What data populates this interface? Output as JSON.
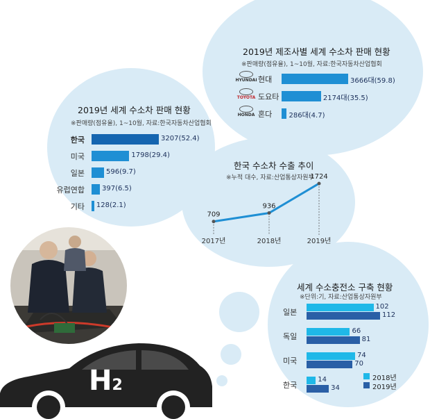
{
  "colors": {
    "bubble": "#d9ebf6",
    "bar_main": "#1f8fd4",
    "bar_2018": "#1fb8e8",
    "bar_2019": "#2a5fa6",
    "line": "#1f8fd4"
  },
  "chart_data": [
    {
      "type": "bar",
      "title": "2019년 세계 수소차 판매 현황",
      "note": "※판매량(점유율), 1~10월, 자료:한국자동차산업협회",
      "categories": [
        "한국",
        "미국",
        "일본",
        "유럽연합",
        "기타"
      ],
      "values": [
        3207,
        1798,
        596,
        397,
        128
      ],
      "labels": [
        "3207(52.4)",
        "1798(29.4)",
        "596(9.7)",
        "397(6.5)",
        "128(2.1)"
      ]
    },
    {
      "type": "bar",
      "title": "2019년 제조사별 세계 수소차 판매 현황",
      "note": "※판매량(점유율), 1~10월, 자료:한국자동차산업협회",
      "categories": [
        "현대",
        "도요타",
        "혼다"
      ],
      "brands": [
        "HYUNDAI",
        "TOYOTA",
        "HONDA"
      ],
      "values": [
        3666,
        2174,
        286
      ],
      "labels": [
        "3666대(59.8)",
        "2174대(35.5)",
        "286대(4.7)"
      ]
    },
    {
      "type": "line",
      "title": "한국 수소차 수출 추이",
      "note": "※누적 대수, 자료:산업통상자원부",
      "x": [
        "2017년",
        "2018년",
        "2019년"
      ],
      "y": [
        709,
        936,
        1724
      ]
    },
    {
      "type": "bar",
      "title": "세계 수소충전소 구축 현황",
      "note": "※단위:기, 자료:산업통상자원부",
      "categories": [
        "일본",
        "독일",
        "미국",
        "한국"
      ],
      "series": [
        {
          "name": "2018년",
          "values": [
            102,
            66,
            74,
            14
          ]
        },
        {
          "name": "2019년",
          "values": [
            112,
            81,
            70,
            34
          ]
        }
      ]
    }
  ],
  "car": {
    "label": "H",
    "subscript": "2"
  }
}
